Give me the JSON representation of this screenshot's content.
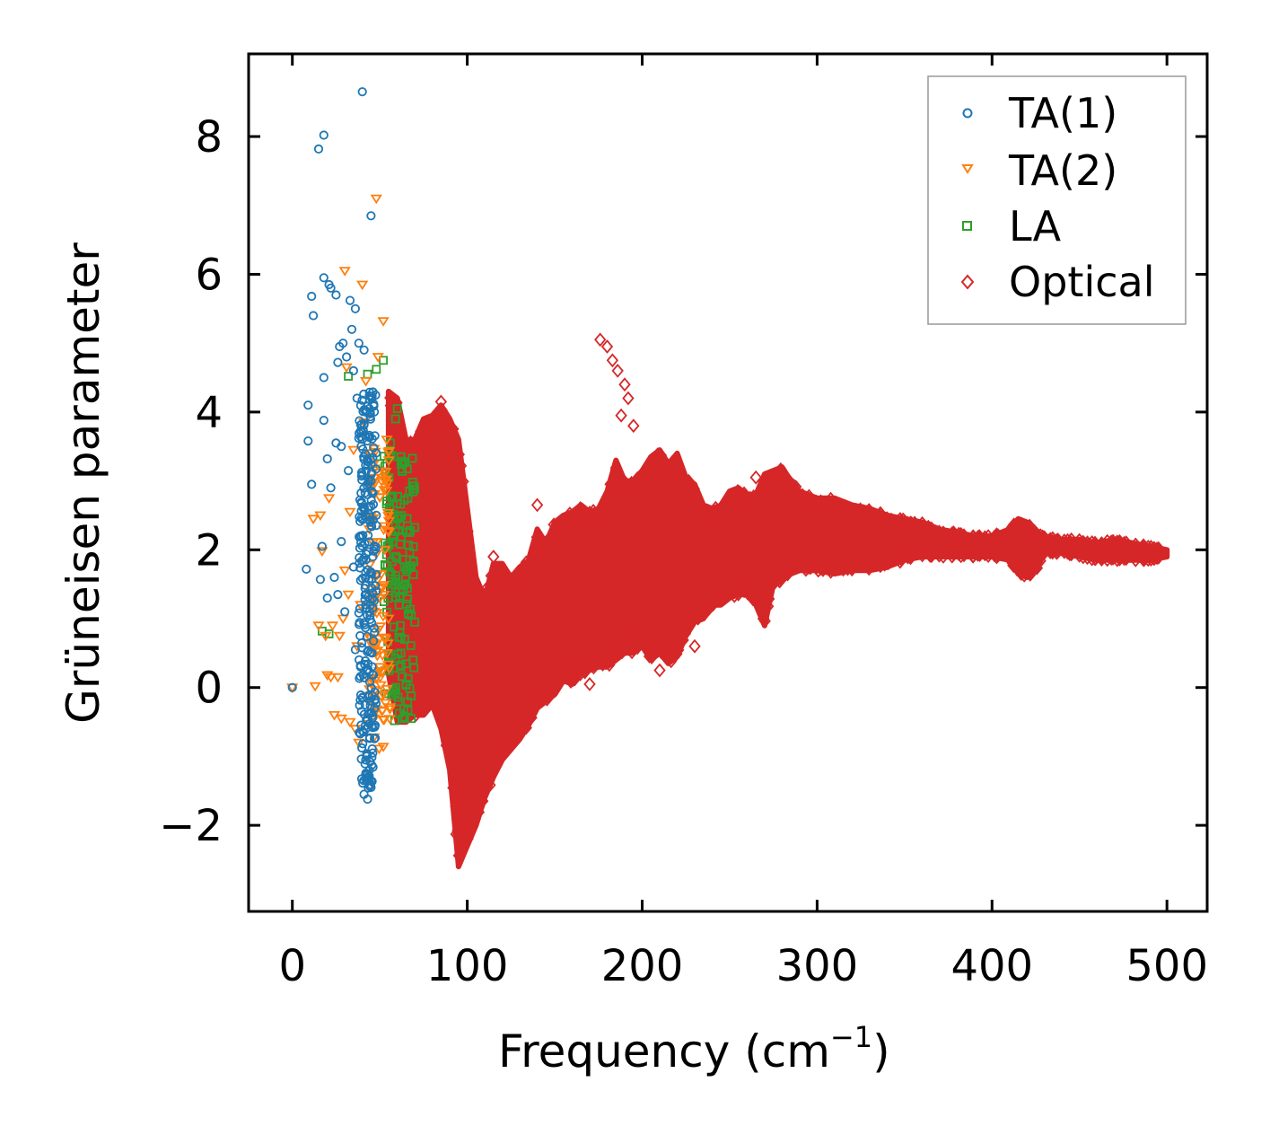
{
  "chart_data": {
    "type": "scatter",
    "title": "",
    "xlabel": "Frequency (cm",
    "xlabel_sup": "−1",
    "xlabel_close": ")",
    "ylabel": "Grüneisen parameter",
    "xlim": [
      -25,
      523
    ],
    "ylim": [
      -3.25,
      9.2
    ],
    "xticks": [
      0,
      100,
      200,
      300,
      400,
      500
    ],
    "xtick_labels": [
      "0",
      "100",
      "200",
      "300",
      "400",
      "500"
    ],
    "yticks": [
      -2,
      0,
      2,
      4,
      6,
      8
    ],
    "ytick_labels": [
      "−2",
      "0",
      "2",
      "4",
      "6",
      "8"
    ],
    "grid": false,
    "legend_position": "top-right",
    "series": [
      {
        "name": "TA(1)",
        "marker": "circle",
        "color": "#1f77b4",
        "points": [
          [
            0,
            0
          ],
          [
            8,
            1.72
          ],
          [
            9,
            4.1
          ],
          [
            9,
            3.58
          ],
          [
            11,
            2.95
          ],
          [
            11,
            5.68
          ],
          [
            12,
            5.4
          ],
          [
            15,
            7.82
          ],
          [
            16,
            1.57
          ],
          [
            17,
            2.05
          ],
          [
            18,
            8.02
          ],
          [
            18,
            5.95
          ],
          [
            18,
            4.5
          ],
          [
            18,
            3.88
          ],
          [
            20,
            3.32
          ],
          [
            20,
            1.3
          ],
          [
            21,
            5.85
          ],
          [
            22,
            5.8
          ],
          [
            22,
            2.9
          ],
          [
            24,
            1.6
          ],
          [
            25,
            3.55
          ],
          [
            25,
            5.7
          ],
          [
            26,
            1.35
          ],
          [
            26,
            4.72
          ],
          [
            27,
            4.95
          ],
          [
            28,
            3.5
          ],
          [
            28,
            2.12
          ],
          [
            29,
            5.0
          ],
          [
            30,
            1.1
          ],
          [
            31,
            4.8
          ],
          [
            32,
            3.15
          ],
          [
            33,
            5.62
          ],
          [
            34,
            5.2
          ],
          [
            35,
            4.6
          ],
          [
            35,
            1.75
          ],
          [
            36,
            5.5
          ],
          [
            36,
            0.55
          ],
          [
            37,
            4.2
          ],
          [
            38,
            5.0
          ],
          [
            38,
            3.62
          ],
          [
            39,
            2.2
          ],
          [
            39,
            0.3
          ],
          [
            40,
            8.65
          ],
          [
            40,
            -0.15
          ],
          [
            41,
            4.9
          ],
          [
            41,
            -1.55
          ],
          [
            42,
            4.0
          ],
          [
            42,
            -0.6
          ],
          [
            43,
            -1.62
          ],
          [
            43,
            2.8
          ],
          [
            44,
            -1.2
          ],
          [
            44,
            4.05
          ],
          [
            45,
            6.85
          ],
          [
            45,
            -1.45
          ],
          [
            45,
            3.0
          ],
          [
            46,
            -0.95
          ],
          [
            46,
            1.9
          ],
          [
            47,
            0.8
          ],
          [
            47,
            -0.3
          ],
          [
            48,
            2.5
          ]
        ]
      },
      {
        "name": "TA(2)",
        "marker": "triangle-down",
        "color": "#ff7f0e",
        "points": [
          [
            0,
            0
          ],
          [
            12,
            2.45
          ],
          [
            13,
            0.02
          ],
          [
            15,
            0.9
          ],
          [
            16,
            2.5
          ],
          [
            17,
            1.98
          ],
          [
            19,
            0.75
          ],
          [
            20,
            0.18
          ],
          [
            21,
            2.75
          ],
          [
            22,
            0.15
          ],
          [
            23,
            0.9
          ],
          [
            24,
            -0.4
          ],
          [
            26,
            0.15
          ],
          [
            27,
            0.75
          ],
          [
            28,
            -0.45
          ],
          [
            29,
            1.0
          ],
          [
            30,
            1.7
          ],
          [
            30,
            6.05
          ],
          [
            31,
            4.65
          ],
          [
            32,
            1.35
          ],
          [
            33,
            -0.5
          ],
          [
            33,
            2.55
          ],
          [
            35,
            3.45
          ],
          [
            36,
            -0.6
          ],
          [
            37,
            0.6
          ],
          [
            38,
            -0.8
          ],
          [
            39,
            1.2
          ],
          [
            40,
            5.85
          ],
          [
            41,
            3.85
          ],
          [
            42,
            4.45
          ],
          [
            44,
            2.3
          ],
          [
            45,
            -0.2
          ],
          [
            46,
            0.6
          ],
          [
            48,
            7.1
          ],
          [
            49,
            4.8
          ],
          [
            50,
            1.3
          ],
          [
            51,
            3.0
          ],
          [
            52,
            5.32
          ],
          [
            52,
            -0.1
          ],
          [
            53,
            2.0
          ],
          [
            54,
            3.6
          ],
          [
            55,
            1.0
          ]
        ]
      },
      {
        "name": "LA",
        "marker": "square",
        "color": "#2ca02c",
        "points": [
          [
            17,
            0.82
          ],
          [
            21,
            0.78
          ],
          [
            32,
            4.52
          ],
          [
            43,
            4.55
          ],
          [
            48,
            4.62
          ],
          [
            50,
            3.25
          ],
          [
            52,
            4.75
          ],
          [
            53,
            2.1
          ],
          [
            54,
            3.05
          ],
          [
            55,
            0.35
          ],
          [
            56,
            3.55
          ],
          [
            57,
            1.5
          ],
          [
            58,
            -0.05
          ],
          [
            59,
            3.9
          ],
          [
            60,
            4.05
          ],
          [
            60,
            2.45
          ],
          [
            61,
            1.2
          ],
          [
            62,
            0.5
          ],
          [
            62,
            3.35
          ],
          [
            63,
            -0.45
          ],
          [
            64,
            1.75
          ],
          [
            65,
            0.05
          ],
          [
            66,
            2.75
          ],
          [
            67,
            2.25
          ],
          [
            68,
            1.05
          ],
          [
            68,
            -0.45
          ],
          [
            69,
            0.4
          ],
          [
            70,
            0.95
          ]
        ]
      },
      {
        "name": "Optical",
        "marker": "diamond",
        "color": "#d62728",
        "band": [
          [
            55,
            0.2,
            4.3
          ],
          [
            60,
            -0.5,
            4.2
          ],
          [
            65,
            -0.5,
            3.6
          ],
          [
            70,
            -0.4,
            3.6
          ],
          [
            75,
            -0.4,
            3.9
          ],
          [
            80,
            -0.25,
            3.95
          ],
          [
            85,
            -0.6,
            4.1
          ],
          [
            90,
            -1.2,
            3.9
          ],
          [
            95,
            -2.6,
            3.6
          ],
          [
            100,
            -2.3,
            2.6
          ],
          [
            105,
            -2.0,
            1.6
          ],
          [
            110,
            -1.6,
            1.3
          ],
          [
            115,
            -1.3,
            1.8
          ],
          [
            120,
            -1.05,
            1.8
          ],
          [
            125,
            -0.9,
            1.6
          ],
          [
            130,
            -0.75,
            1.75
          ],
          [
            135,
            -0.55,
            1.85
          ],
          [
            140,
            -0.3,
            2.3
          ],
          [
            145,
            -0.2,
            2.1
          ],
          [
            150,
            -0.1,
            2.4
          ],
          [
            155,
            0.1,
            2.5
          ],
          [
            160,
            0.05,
            2.55
          ],
          [
            165,
            0.2,
            2.65
          ],
          [
            170,
            0.25,
            2.55
          ],
          [
            175,
            0.3,
            2.6
          ],
          [
            180,
            0.3,
            2.85
          ],
          [
            185,
            0.4,
            3.3
          ],
          [
            190,
            0.5,
            3.0
          ],
          [
            195,
            0.5,
            3.0
          ],
          [
            200,
            0.6,
            3.15
          ],
          [
            205,
            0.4,
            3.35
          ],
          [
            210,
            0.5,
            3.45
          ],
          [
            215,
            0.35,
            3.25
          ],
          [
            220,
            0.45,
            3.4
          ],
          [
            225,
            0.75,
            3.05
          ],
          [
            230,
            0.95,
            2.95
          ],
          [
            235,
            1.0,
            2.65
          ],
          [
            240,
            1.2,
            2.6
          ],
          [
            245,
            1.2,
            2.65
          ],
          [
            250,
            1.3,
            2.85
          ],
          [
            255,
            1.35,
            2.9
          ],
          [
            260,
            1.35,
            2.8
          ],
          [
            265,
            1.2,
            2.8
          ],
          [
            270,
            0.9,
            3.1
          ],
          [
            275,
            1.5,
            3.15
          ],
          [
            280,
            1.55,
            3.2
          ],
          [
            285,
            1.65,
            3.0
          ],
          [
            290,
            1.7,
            2.85
          ],
          [
            295,
            1.7,
            2.8
          ],
          [
            300,
            1.7,
            2.75
          ],
          [
            310,
            1.65,
            2.75
          ],
          [
            320,
            1.7,
            2.65
          ],
          [
            330,
            1.7,
            2.6
          ],
          [
            340,
            1.75,
            2.5
          ],
          [
            350,
            1.85,
            2.45
          ],
          [
            360,
            1.9,
            2.4
          ],
          [
            370,
            1.9,
            2.3
          ],
          [
            380,
            1.9,
            2.25
          ],
          [
            390,
            1.9,
            2.2
          ],
          [
            400,
            1.9,
            2.2
          ],
          [
            410,
            1.85,
            2.3
          ],
          [
            415,
            1.65,
            2.45
          ],
          [
            420,
            1.6,
            2.4
          ],
          [
            425,
            1.7,
            2.25
          ],
          [
            430,
            1.95,
            2.2
          ],
          [
            440,
            1.95,
            2.15
          ],
          [
            450,
            1.9,
            2.15
          ],
          [
            460,
            1.85,
            2.1
          ],
          [
            470,
            1.85,
            2.15
          ],
          [
            480,
            1.85,
            2.1
          ],
          [
            490,
            1.85,
            2.05
          ],
          [
            500,
            1.9,
            2.0
          ]
        ],
        "points": [
          [
            176,
            5.05
          ],
          [
            180,
            4.95
          ],
          [
            183,
            4.75
          ],
          [
            186,
            4.6
          ],
          [
            190,
            4.4
          ],
          [
            192,
            4.2
          ],
          [
            188,
            3.95
          ],
          [
            195,
            3.8
          ],
          [
            85,
            4.15
          ],
          [
            140,
            2.65
          ],
          [
            115,
            1.9
          ],
          [
            190,
            1.2
          ],
          [
            265,
            3.05
          ],
          [
            230,
            0.6
          ],
          [
            210,
            0.25
          ],
          [
            170,
            0.05
          ]
        ]
      }
    ]
  }
}
